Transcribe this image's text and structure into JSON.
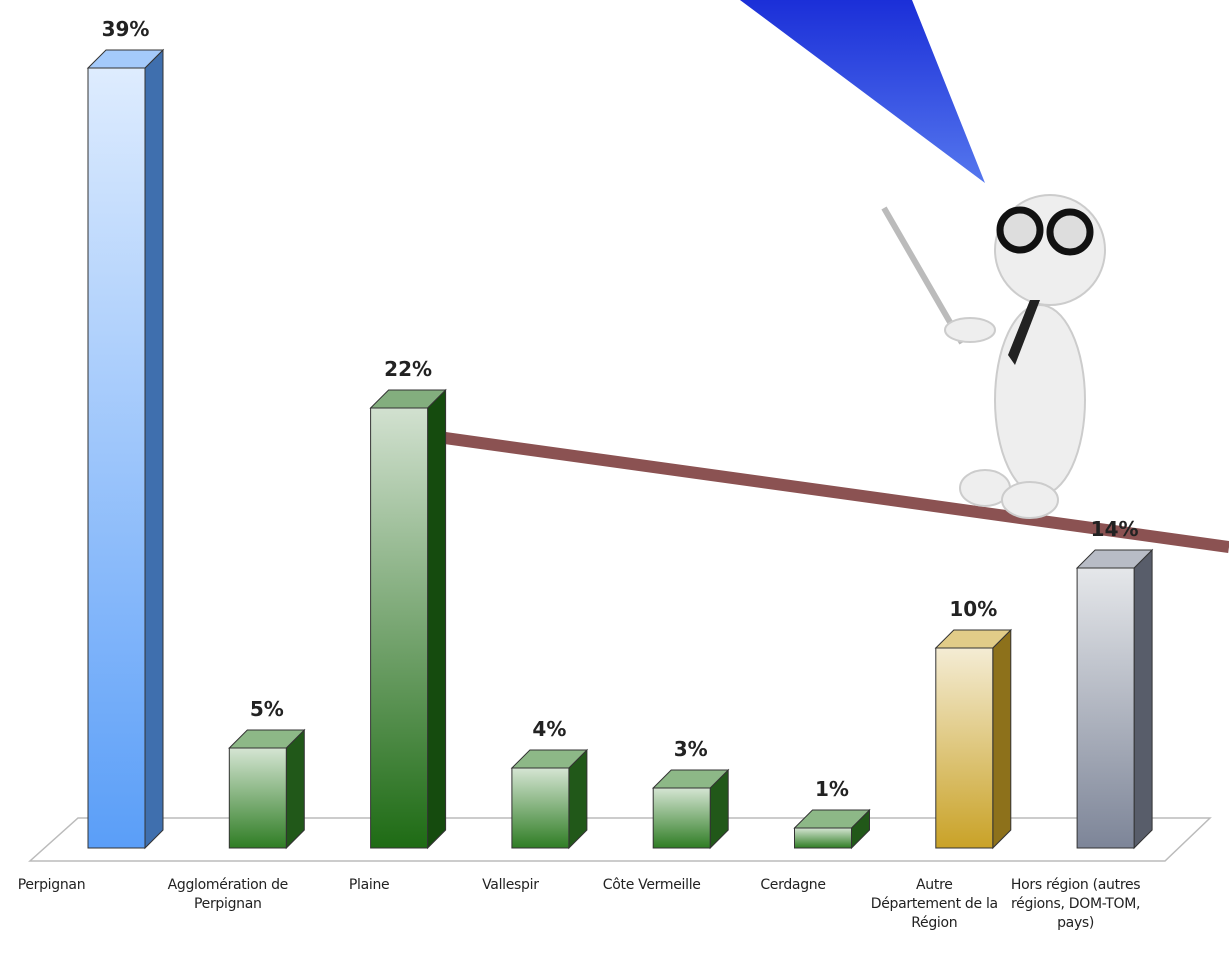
{
  "chart_data": {
    "type": "bar3d",
    "categories": [
      "Perpignan",
      "Agglomération de Perpignan",
      "Plaine",
      "Vallespir",
      "Côte Vermeille",
      "Cerdagne",
      "Autre Département de la Région",
      "Hors région (autres régions, DOM-TOM, pays)"
    ],
    "values": [
      39,
      5,
      22,
      4,
      3,
      1,
      10,
      14
    ],
    "value_labels": [
      "39%",
      "5%",
      "22%",
      "4%",
      "3%",
      "1%",
      "10%",
      "14%"
    ],
    "colors": [
      "#5a9ef8",
      "#2f7d24",
      "#1e6b14",
      "#2f7d24",
      "#2f7d24",
      "#2f7d24",
      "#c9a227",
      "#7d8598"
    ]
  }
}
